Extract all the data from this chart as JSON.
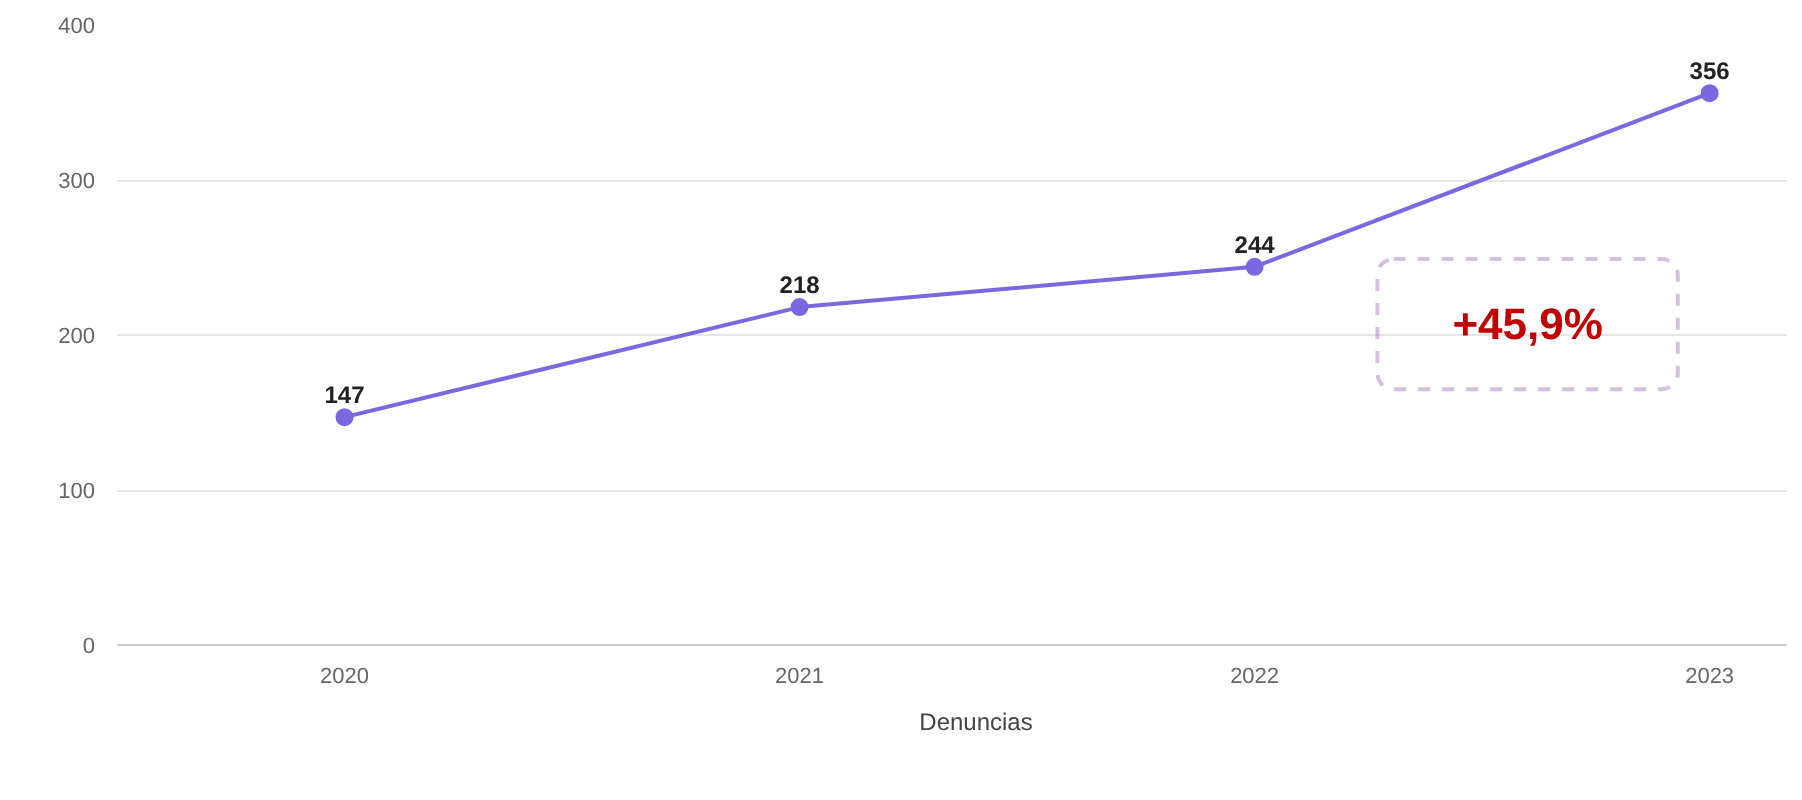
{
  "chart_data": {
    "type": "line",
    "categories": [
      "2020",
      "2021",
      "2022",
      "2023"
    ],
    "series": [
      {
        "name": "Denuncias",
        "color": "#7b68e0",
        "values": [
          147,
          218,
          244,
          356
        ]
      }
    ],
    "ylim": [
      0,
      400
    ],
    "yticks": [
      0,
      100,
      200,
      300,
      400
    ],
    "grid": "y",
    "legend": "bottom",
    "marker": "circle",
    "line_style": "solid",
    "data_labels": true,
    "annotations": [
      "+45,9%"
    ]
  }
}
